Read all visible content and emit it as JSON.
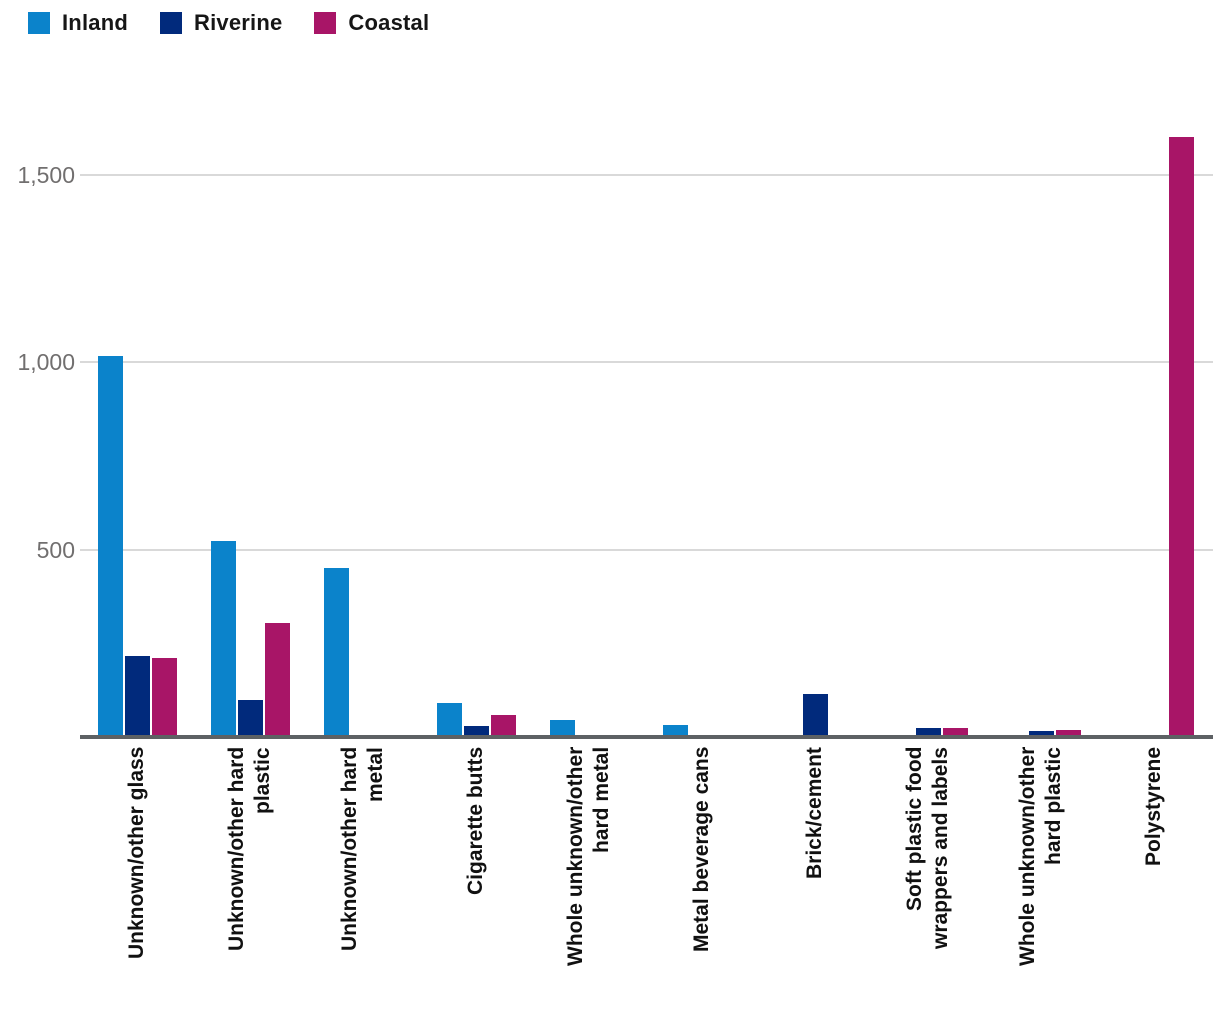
{
  "legend": {
    "items": [
      {
        "label": "Inland"
      },
      {
        "label": "Riverine"
      },
      {
        "label": "Coastal"
      }
    ]
  },
  "chart_data": {
    "type": "bar",
    "title": "",
    "xlabel": "",
    "ylabel": "",
    "categories": [
      "Unknown/other glass",
      "Unknown/other hard\nplastic",
      "Unknown/other hard\nmetal",
      "Cigarette butts",
      "Whole unknown/other\nhard metal",
      "Metal beverage cans",
      "Brick/cement",
      "Soft plastic food\nwrappers and labels",
      "Whole unknown/other\nhard plastic",
      "Polystyrene"
    ],
    "series": [
      {
        "name": "Inland",
        "color": "#0b83cb",
        "values": [
          1015,
          522,
          452,
          90,
          45,
          33,
          0,
          0,
          0,
          0
        ]
      },
      {
        "name": "Riverine",
        "color": "#012a7c",
        "values": [
          215,
          98,
          0,
          29,
          0,
          0,
          114,
          24,
          15,
          0
        ]
      },
      {
        "name": "Coastal",
        "color": "#a81567",
        "values": [
          210,
          303,
          0,
          58,
          0,
          0,
          0,
          24,
          20,
          1600
        ]
      }
    ],
    "yticks": [
      {
        "value": 500,
        "label": "500"
      },
      {
        "value": 1000,
        "label": "1,000"
      },
      {
        "value": 1500,
        "label": "1,500"
      }
    ],
    "ylim": [
      0,
      1725
    ],
    "grid": "horizontal",
    "legend_position": "top-left",
    "colors": {
      "inland": "#0b83cb",
      "riverine": "#012a7c",
      "coastal": "#a81567",
      "gridline": "#d9d9d9",
      "axis_line": "#5d6164",
      "tick_text": "#716f6f",
      "label_text": "#111111"
    }
  }
}
